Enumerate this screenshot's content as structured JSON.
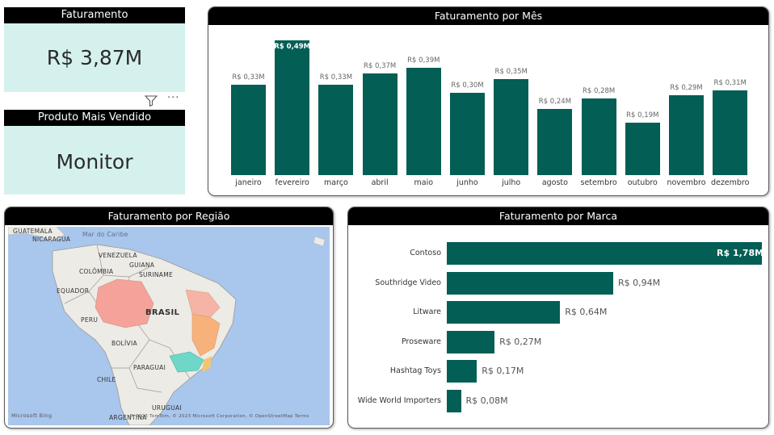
{
  "kpis": {
    "faturamento": {
      "title": "Faturamento",
      "value": "R$ 3,87M"
    },
    "produto": {
      "title": "Produto Mais Vendido",
      "value": "Monitor"
    }
  },
  "visual_icons": {
    "filter": "filter-icon",
    "more": "more-options-icon"
  },
  "month_chart": {
    "title": "Faturamento por Mês",
    "chart_data": {
      "type": "bar",
      "categories": [
        "janeiro",
        "fevereiro",
        "março",
        "abril",
        "maio",
        "junho",
        "julho",
        "agosto",
        "setembro",
        "outubro",
        "novembro",
        "dezembro"
      ],
      "values": [
        0.33,
        0.49,
        0.33,
        0.37,
        0.39,
        0.3,
        0.35,
        0.24,
        0.28,
        0.19,
        0.29,
        0.31
      ],
      "data_labels": [
        "R$ 0,33M",
        "R$ 0,49M",
        "R$ 0,33M",
        "R$ 0,37M",
        "R$ 0,39M",
        "R$ 0,30M",
        "R$ 0,35M",
        "R$ 0,24M",
        "R$ 0,28M",
        "R$ 0,19M",
        "R$ 0,29M",
        "R$ 0,31M"
      ],
      "highlight_index": 1,
      "color": "#035e55"
    }
  },
  "region_map": {
    "title": "Faturamento por Região",
    "labels": [
      "GUATEMALA",
      "NICARAGUA",
      "Mar do Caribe",
      "VENEZUELA",
      "COLÔMBIA",
      "GUIANA",
      "SURINAME",
      "EQUADOR",
      "PERU",
      "BRASIL",
      "BOLÍVIA",
      "PARAGUAI",
      "CHILE",
      "URUGUAI",
      "ARGENTINA"
    ],
    "attribution": "© 2023 TomTom, © 2023 Microsoft Corporation, © OpenStreetMap  Terms",
    "logo": "Microsoft Bing"
  },
  "brand_chart": {
    "title": "Faturamento por Marca",
    "chart_data": {
      "type": "bar",
      "orientation": "horizontal",
      "categories": [
        "Contoso",
        "Southridge Video",
        "Litware",
        "Proseware",
        "Hashtag Toys",
        "Wide World Importers"
      ],
      "values": [
        1.78,
        0.94,
        0.64,
        0.27,
        0.17,
        0.08
      ],
      "data_labels": [
        "R$ 1,78M",
        "R$ 0,94M",
        "R$ 0,64M",
        "R$ 0,27M",
        "R$ 0,17M",
        "R$ 0,08M"
      ],
      "color": "#035e55"
    }
  }
}
